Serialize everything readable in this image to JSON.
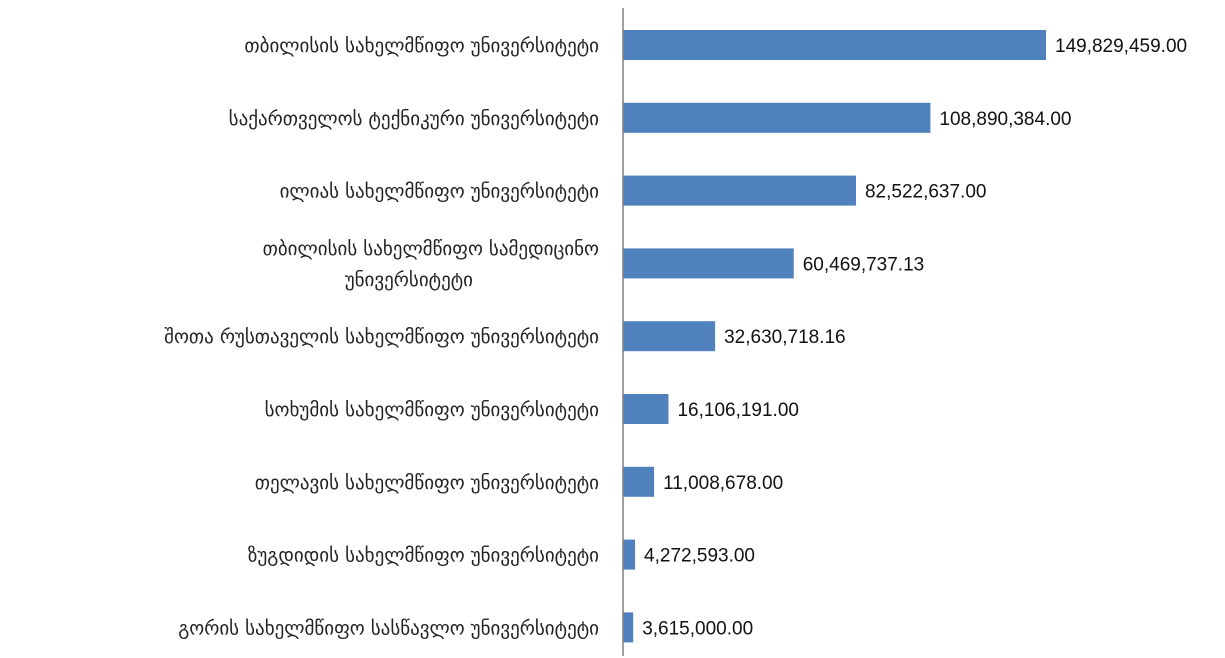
{
  "chart_data": {
    "type": "bar",
    "orientation": "horizontal",
    "title": "",
    "xlabel": "",
    "ylabel": "",
    "grid": false,
    "legend": "none",
    "bar_color": "#4F81BD",
    "axis_color": "#808080",
    "xlim": [
      0,
      155000000
    ],
    "categories": [
      [
        "თბილისის სახელმწიფო უნივერსიტეტი"
      ],
      [
        "საქართველოს ტექნიკური უნივერსიტეტი"
      ],
      [
        "ილიას სახელმწიფო უნივერსიტეტი"
      ],
      [
        "თბილისის სახელმწიფო სამედიცინო",
        "უნივერსიტეტი"
      ],
      [
        "შოთა რუსთაველის სახელმწიფო უნივერსიტეტი"
      ],
      [
        "სოხუმის სახელმწიფო უნივერსიტეტი"
      ],
      [
        "თელავის სახელმწიფო უნივერსიტეტი"
      ],
      [
        "ზუგდიდის სახელმწიფო უნივერსიტეტი"
      ],
      [
        "გორის სახელმწიფო სასწავლო უნივერსიტეტი"
      ]
    ],
    "values": [
      149829459.0,
      108890384.0,
      82522637.0,
      60469737.13,
      32630718.16,
      16106191.0,
      11008678.0,
      4272593.0,
      3615000.0
    ],
    "value_labels": [
      "149,829,459.00",
      "108,890,384.00",
      "82,522,637.00",
      "60,469,737.13",
      "32,630,718.16",
      "16,106,191.00",
      "11,008,678.00",
      "4,272,593.00",
      "3,615,000.00"
    ]
  }
}
